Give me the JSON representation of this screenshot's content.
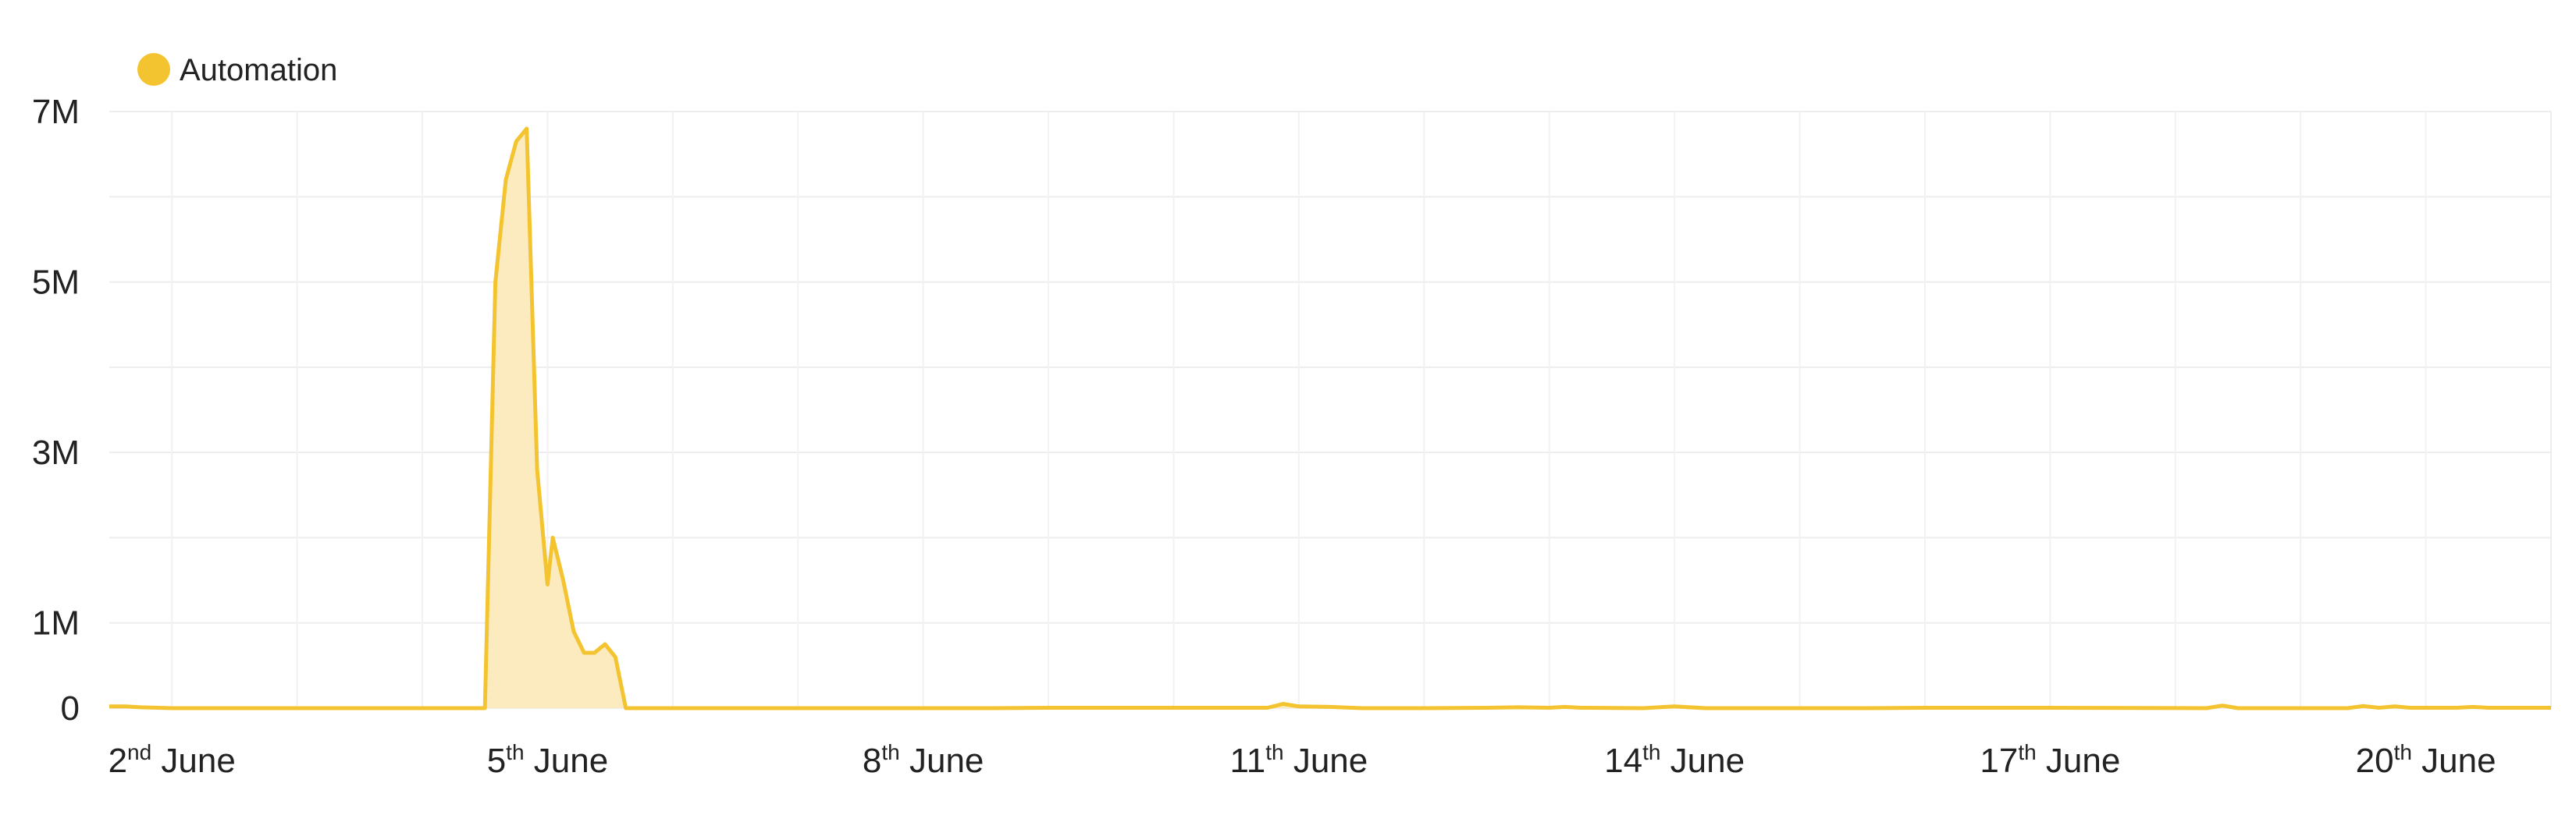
{
  "chart_data": {
    "type": "area",
    "legend": {
      "position": "top-left",
      "entries": [
        {
          "name": "Automation",
          "color": "#F4C430"
        }
      ]
    },
    "series": [
      {
        "name": "Automation",
        "color": "#F4C430",
        "fill": "#FDEBC0"
      }
    ],
    "grid": true,
    "ylim": [
      0,
      7000000
    ],
    "y_ticks": [
      {
        "value": 0,
        "label": "0"
      },
      {
        "value": 1000000,
        "label": "1M"
      },
      {
        "value": 3000000,
        "label": "3M"
      },
      {
        "value": 5000000,
        "label": "5M"
      },
      {
        "value": 7000000,
        "label": "7M"
      }
    ],
    "xlim": [
      "2024-06-01T12:00",
      "2024-06-21T00:00"
    ],
    "x_ticks": [
      {
        "value": "2024-06-02",
        "day": "2",
        "suffix": "nd",
        "month": "June"
      },
      {
        "value": "2024-06-05",
        "day": "5",
        "suffix": "th",
        "month": "June"
      },
      {
        "value": "2024-06-08",
        "day": "8",
        "suffix": "th",
        "month": "June"
      },
      {
        "value": "2024-06-11",
        "day": "11",
        "suffix": "th",
        "month": "June"
      },
      {
        "value": "2024-06-14",
        "day": "14",
        "suffix": "th",
        "month": "June"
      },
      {
        "value": "2024-06-17",
        "day": "17",
        "suffix": "th",
        "month": "June"
      },
      {
        "value": "2024-06-20",
        "day": "20",
        "suffix": "th",
        "month": "June"
      }
    ],
    "points": [
      [
        "2024-06-01T12:00",
        20000
      ],
      [
        "2024-06-01T15:00",
        20000
      ],
      [
        "2024-06-01T18:00",
        10000
      ],
      [
        "2024-06-02T00:00",
        0
      ],
      [
        "2024-06-04T03:00",
        0
      ],
      [
        "2024-06-04T12:00",
        0
      ],
      [
        "2024-06-04T14:00",
        5000000
      ],
      [
        "2024-06-04T16:00",
        6200000
      ],
      [
        "2024-06-04T18:00",
        6650000
      ],
      [
        "2024-06-04T20:00",
        6800000
      ],
      [
        "2024-06-04T22:00",
        2800000
      ],
      [
        "2024-06-05T00:00",
        1450000
      ],
      [
        "2024-06-05T01:00",
        2000000
      ],
      [
        "2024-06-05T03:00",
        1500000
      ],
      [
        "2024-06-05T05:00",
        900000
      ],
      [
        "2024-06-05T07:00",
        650000
      ],
      [
        "2024-06-05T09:00",
        650000
      ],
      [
        "2024-06-05T11:00",
        750000
      ],
      [
        "2024-06-05T13:00",
        600000
      ],
      [
        "2024-06-05T15:00",
        0
      ],
      [
        "2024-06-08T12:00",
        0
      ],
      [
        "2024-06-09T00:00",
        5000
      ],
      [
        "2024-06-10T18:00",
        5000
      ],
      [
        "2024-06-10T21:00",
        50000
      ],
      [
        "2024-06-11T00:00",
        20000
      ],
      [
        "2024-06-11T06:00",
        15000
      ],
      [
        "2024-06-11T12:00",
        0
      ],
      [
        "2024-06-12T00:00",
        0
      ],
      [
        "2024-06-12T12:00",
        5000
      ],
      [
        "2024-06-12T18:00",
        10000
      ],
      [
        "2024-06-13T00:00",
        5000
      ],
      [
        "2024-06-13T03:00",
        15000
      ],
      [
        "2024-06-13T06:00",
        5000
      ],
      [
        "2024-06-13T18:00",
        0
      ],
      [
        "2024-06-14T00:00",
        20000
      ],
      [
        "2024-06-14T06:00",
        0
      ],
      [
        "2024-06-15T12:00",
        0
      ],
      [
        "2024-06-16T00:00",
        5000
      ],
      [
        "2024-06-17T00:00",
        5000
      ],
      [
        "2024-06-18T06:00",
        0
      ],
      [
        "2024-06-18T09:00",
        30000
      ],
      [
        "2024-06-18T12:00",
        0
      ],
      [
        "2024-06-19T09:00",
        0
      ],
      [
        "2024-06-19T12:00",
        25000
      ],
      [
        "2024-06-19T15:00",
        5000
      ],
      [
        "2024-06-19T18:00",
        20000
      ],
      [
        "2024-06-19T21:00",
        5000
      ],
      [
        "2024-06-20T06:00",
        5000
      ],
      [
        "2024-06-20T09:00",
        15000
      ],
      [
        "2024-06-20T12:00",
        5000
      ],
      [
        "2024-06-21T00:00",
        5000
      ]
    ]
  }
}
